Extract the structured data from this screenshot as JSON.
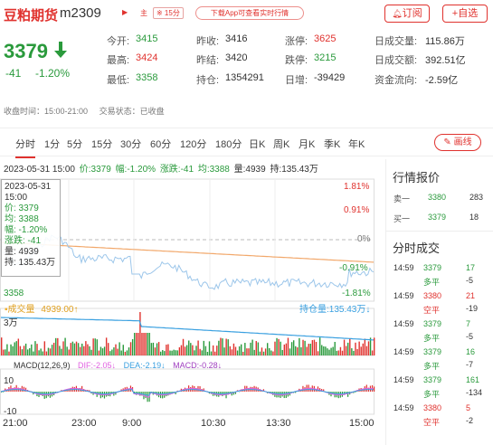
{
  "header": {
    "name": "豆粕期货",
    "code": "m2309",
    "tag_main": "主",
    "tag_period": "※ 15分",
    "download": "下载App可查看实时行情",
    "subscribe": "订阅",
    "add_fav": "+自选"
  },
  "quote": {
    "price": "3379",
    "change": "-41",
    "change_pct": "-1.20%",
    "fields": [
      {
        "label": "今开:",
        "value": "3415",
        "color": "green"
      },
      {
        "label": "昨收:",
        "value": "3416",
        "color": "black"
      },
      {
        "label": "涨停:",
        "value": "3625",
        "color": "red"
      },
      {
        "label": "日成交量:",
        "value": "115.86万",
        "color": "black"
      },
      {
        "label": "最高:",
        "value": "3424",
        "color": "red"
      },
      {
        "label": "昨结:",
        "value": "3420",
        "color": "black"
      },
      {
        "label": "跌停:",
        "value": "3215",
        "color": "green"
      },
      {
        "label": "日成交额:",
        "value": "392.51亿",
        "color": "black"
      },
      {
        "label": "最低:",
        "value": "3358",
        "color": "green"
      },
      {
        "label": "持仓:",
        "value": "1354291",
        "color": "black"
      },
      {
        "label": "日增:",
        "value": "-39429",
        "color": "black"
      },
      {
        "label": "资金流向:",
        "value": "-2.59亿",
        "color": "black"
      }
    ]
  },
  "status": {
    "hours": "收盘时间：15:00-21:00",
    "trade_state": "交易状态：已收盘"
  },
  "tabs": [
    "分时",
    "1分",
    "5分",
    "15分",
    "30分",
    "60分",
    "120分",
    "180分",
    "日K",
    "周K",
    "月K",
    "季K",
    "年K"
  ],
  "draw_button": "画线",
  "infobar": {
    "datetime": "2023-05-31 15:00",
    "price": "价:3379",
    "pct": "幅:-1.20%",
    "chg": "涨跌:-41",
    "avg": "均:3388",
    "vol": "量:4939",
    "oi": "持:135.43万"
  },
  "tooltip": {
    "date": "2023-05-31",
    "time": "15:00",
    "price": "价: 3379",
    "avg": "均: 3388",
    "pct": "幅: -1.20%",
    "chg": "涨跌: -41",
    "vol": "量: 4939",
    "oi": "持: 135.43万"
  },
  "chart_labels": {
    "pct_top": "1.81%",
    "pct_2": "0.91%",
    "pct_zero": "0%",
    "pct_4": "-0.91%",
    "pct_bottom": "-1.81%",
    "price_low": "3358",
    "vol_title": "成交量",
    "vol_value": "4939.00↑",
    "oi_value": "持仓量:135.43万↓",
    "vol_axis": "3万",
    "macd_title": "MACD(12,26,9)",
    "dif": "DIF:-2.05↓",
    "dea": "DEA:-2.19↓",
    "macd": "MACD:-0.28↓",
    "macd_top": "10",
    "macd_bottom": "-10",
    "times": [
      "21:00",
      "23:00",
      "9:00",
      "10:30",
      "13:30",
      "15:00"
    ]
  },
  "panel": {
    "quote_title": "行情报价",
    "sell_label": "卖一",
    "sell_price": "3380",
    "sell_vol": "283",
    "buy_label": "买一",
    "buy_price": "3379",
    "buy_vol": "18",
    "trades_title": "分时成交",
    "trades": [
      {
        "time": "14:59",
        "price": "3379",
        "pcolor": "green",
        "vol": "17",
        "vcolor": "green",
        "type": "多平",
        "tcolor": "green",
        "oi": "-5"
      },
      {
        "time": "14:59",
        "price": "3380",
        "pcolor": "red",
        "vol": "21",
        "vcolor": "red",
        "type": "空平",
        "tcolor": "red",
        "oi": "-19"
      },
      {
        "time": "14:59",
        "price": "3379",
        "pcolor": "green",
        "vol": "7",
        "vcolor": "green",
        "type": "多平",
        "tcolor": "green",
        "oi": "-5"
      },
      {
        "time": "14:59",
        "price": "3379",
        "pcolor": "green",
        "vol": "16",
        "vcolor": "green",
        "type": "多平",
        "tcolor": "green",
        "oi": "-7"
      },
      {
        "time": "14:59",
        "price": "3379",
        "pcolor": "green",
        "vol": "161",
        "vcolor": "green",
        "type": "多平",
        "tcolor": "green",
        "oi": "-134"
      },
      {
        "time": "14:59",
        "price": "3380",
        "pcolor": "red",
        "vol": "5",
        "vcolor": "red",
        "type": "空平",
        "tcolor": "red",
        "oi": "-2"
      }
    ]
  }
}
